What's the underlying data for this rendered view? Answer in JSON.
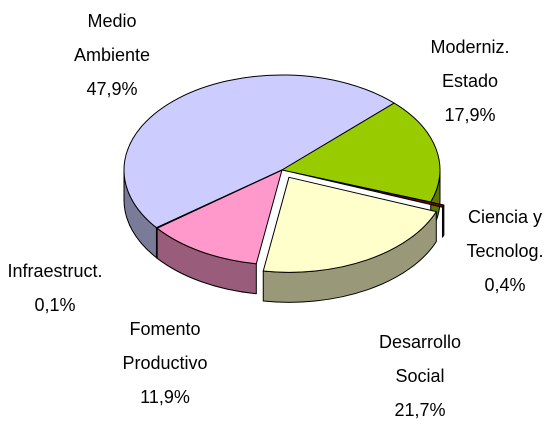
{
  "chart_data": {
    "type": "pie3d",
    "categories": [
      [
        "Medio",
        "Ambiente"
      ],
      [
        "Moderniz.",
        "Estado"
      ],
      [
        "Ciencia y",
        "Tecnolog."
      ],
      [
        "Desarrollo",
        "Social"
      ],
      [
        "Fomento",
        "Productivo"
      ],
      [
        "Infraestruct."
      ]
    ],
    "values": [
      47.9,
      17.9,
      0.4,
      21.7,
      11.9,
      0.1
    ],
    "value_labels": [
      "47,9%",
      "17,9%",
      "0,4%",
      "21,7%",
      "11,9%",
      "0,1%"
    ],
    "colors": [
      "#ccccff",
      "#99cc00",
      "#800000",
      "#ffffcc",
      "#ff99cc",
      "#66ccff"
    ],
    "explode": [
      false,
      false,
      true,
      true,
      false,
      false
    ]
  }
}
